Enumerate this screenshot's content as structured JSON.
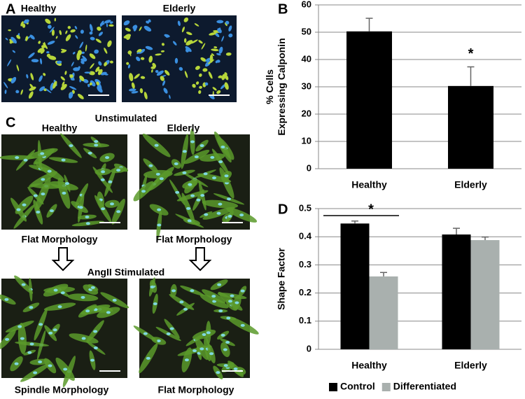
{
  "figure": {
    "panel_a": {
      "label": "A",
      "captions": [
        "Healthy",
        "Elderly"
      ]
    },
    "panel_c": {
      "label": "C",
      "unstimulated": "Unstimulated",
      "stimulated": "AngII Stimulated",
      "columns": [
        "Healthy",
        "Elderly"
      ],
      "top_captions": [
        "Flat Morphology",
        "Flat Morphology"
      ],
      "bottom_captions": [
        "Spindle Morphology",
        "Flat Morphology"
      ]
    }
  },
  "chart_data": [
    {
      "type": "bar",
      "panel": "B",
      "ylabel": [
        "% Cells",
        "Expressing Calponin"
      ],
      "categories": [
        "Healthy",
        "Elderly"
      ],
      "values": [
        50.3,
        30.3
      ],
      "errors": [
        4.8,
        7.0
      ],
      "color": "#000000",
      "ylim": [
        0,
        60
      ],
      "yticks": [
        0,
        10,
        20,
        30,
        40,
        50,
        60
      ],
      "grid": true,
      "annotation": "*"
    },
    {
      "type": "bar",
      "panel": "D",
      "ylabel": [
        "Shape Factor"
      ],
      "categories": [
        "Healthy",
        "Elderly"
      ],
      "series": [
        {
          "name": "Control",
          "color": "#000000",
          "values": [
            0.447,
            0.408
          ],
          "errors": [
            0.009,
            0.022
          ]
        },
        {
          "name": "Differentiated",
          "color": "#a9b0ae",
          "values": [
            0.259,
            0.388
          ],
          "errors": [
            0.014,
            0.011
          ]
        }
      ],
      "ylim": [
        0,
        0.5
      ],
      "yticks": [
        0,
        0.1,
        0.2,
        0.3,
        0.4,
        0.5
      ],
      "grid": true,
      "legend": "bottom",
      "annotation": "*"
    }
  ]
}
